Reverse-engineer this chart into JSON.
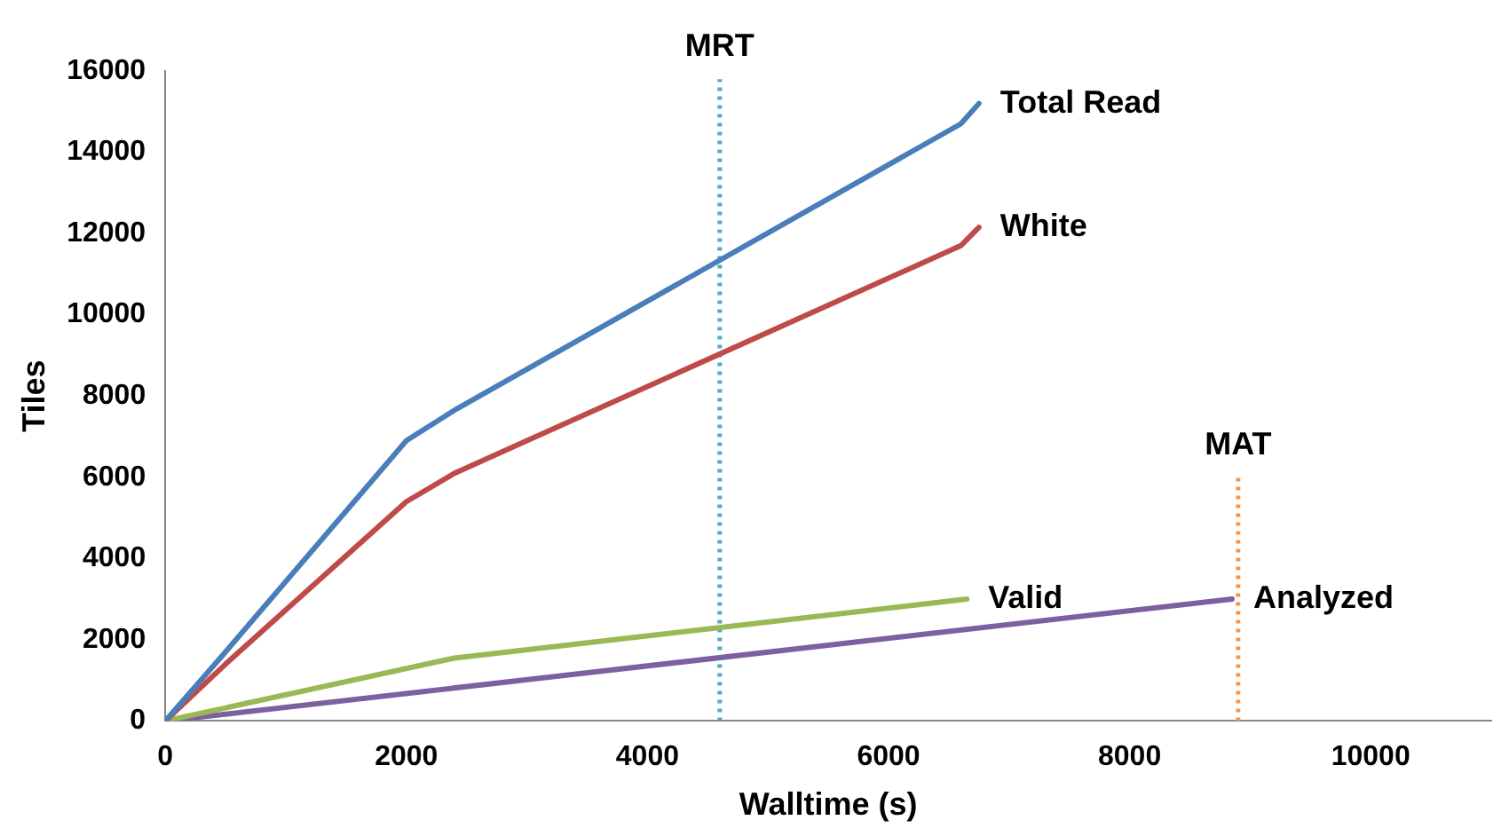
{
  "chart_data": {
    "type": "line",
    "xlabel": "Walltime (s)",
    "ylabel": "Tiles",
    "xlim": [
      0,
      11000
    ],
    "xticks": [
      0,
      2000,
      4000,
      6000,
      8000,
      10000
    ],
    "ylim": [
      0,
      16000
    ],
    "yticks": [
      0,
      2000,
      4000,
      6000,
      8000,
      10000,
      12000,
      14000,
      16000
    ],
    "grid": false,
    "legend": false,
    "marker": "none",
    "line_style": "solid",
    "series": [
      {
        "name": "Total Read",
        "color": "#4a7ebb",
        "x": [
          0,
          500,
          2000,
          2400,
          6600,
          6750
        ],
        "values": [
          0,
          1700,
          6900,
          7650,
          14700,
          15200
        ]
      },
      {
        "name": "White",
        "color": "#be4b48",
        "x": [
          0,
          500,
          2000,
          2400,
          6600,
          6750
        ],
        "values": [
          0,
          1400,
          5400,
          6100,
          11700,
          12150
        ]
      },
      {
        "name": "Valid",
        "color": "#98b954",
        "x": [
          0,
          2400,
          6650
        ],
        "values": [
          0,
          1550,
          3000
        ]
      },
      {
        "name": "Analyzed",
        "color": "#7d60a0",
        "x": [
          0,
          8850
        ],
        "values": [
          0,
          3000
        ]
      },
      {
        "name": "MRT",
        "color": "#4bacc6",
        "line_style": "dotted",
        "x": [
          4600,
          4600
        ],
        "values": [
          0,
          15800
        ]
      },
      {
        "name": "MAT",
        "color": "#f79646",
        "line_style": "dotted",
        "x": [
          8900,
          8900
        ],
        "values": [
          0,
          6000
        ]
      }
    ]
  }
}
